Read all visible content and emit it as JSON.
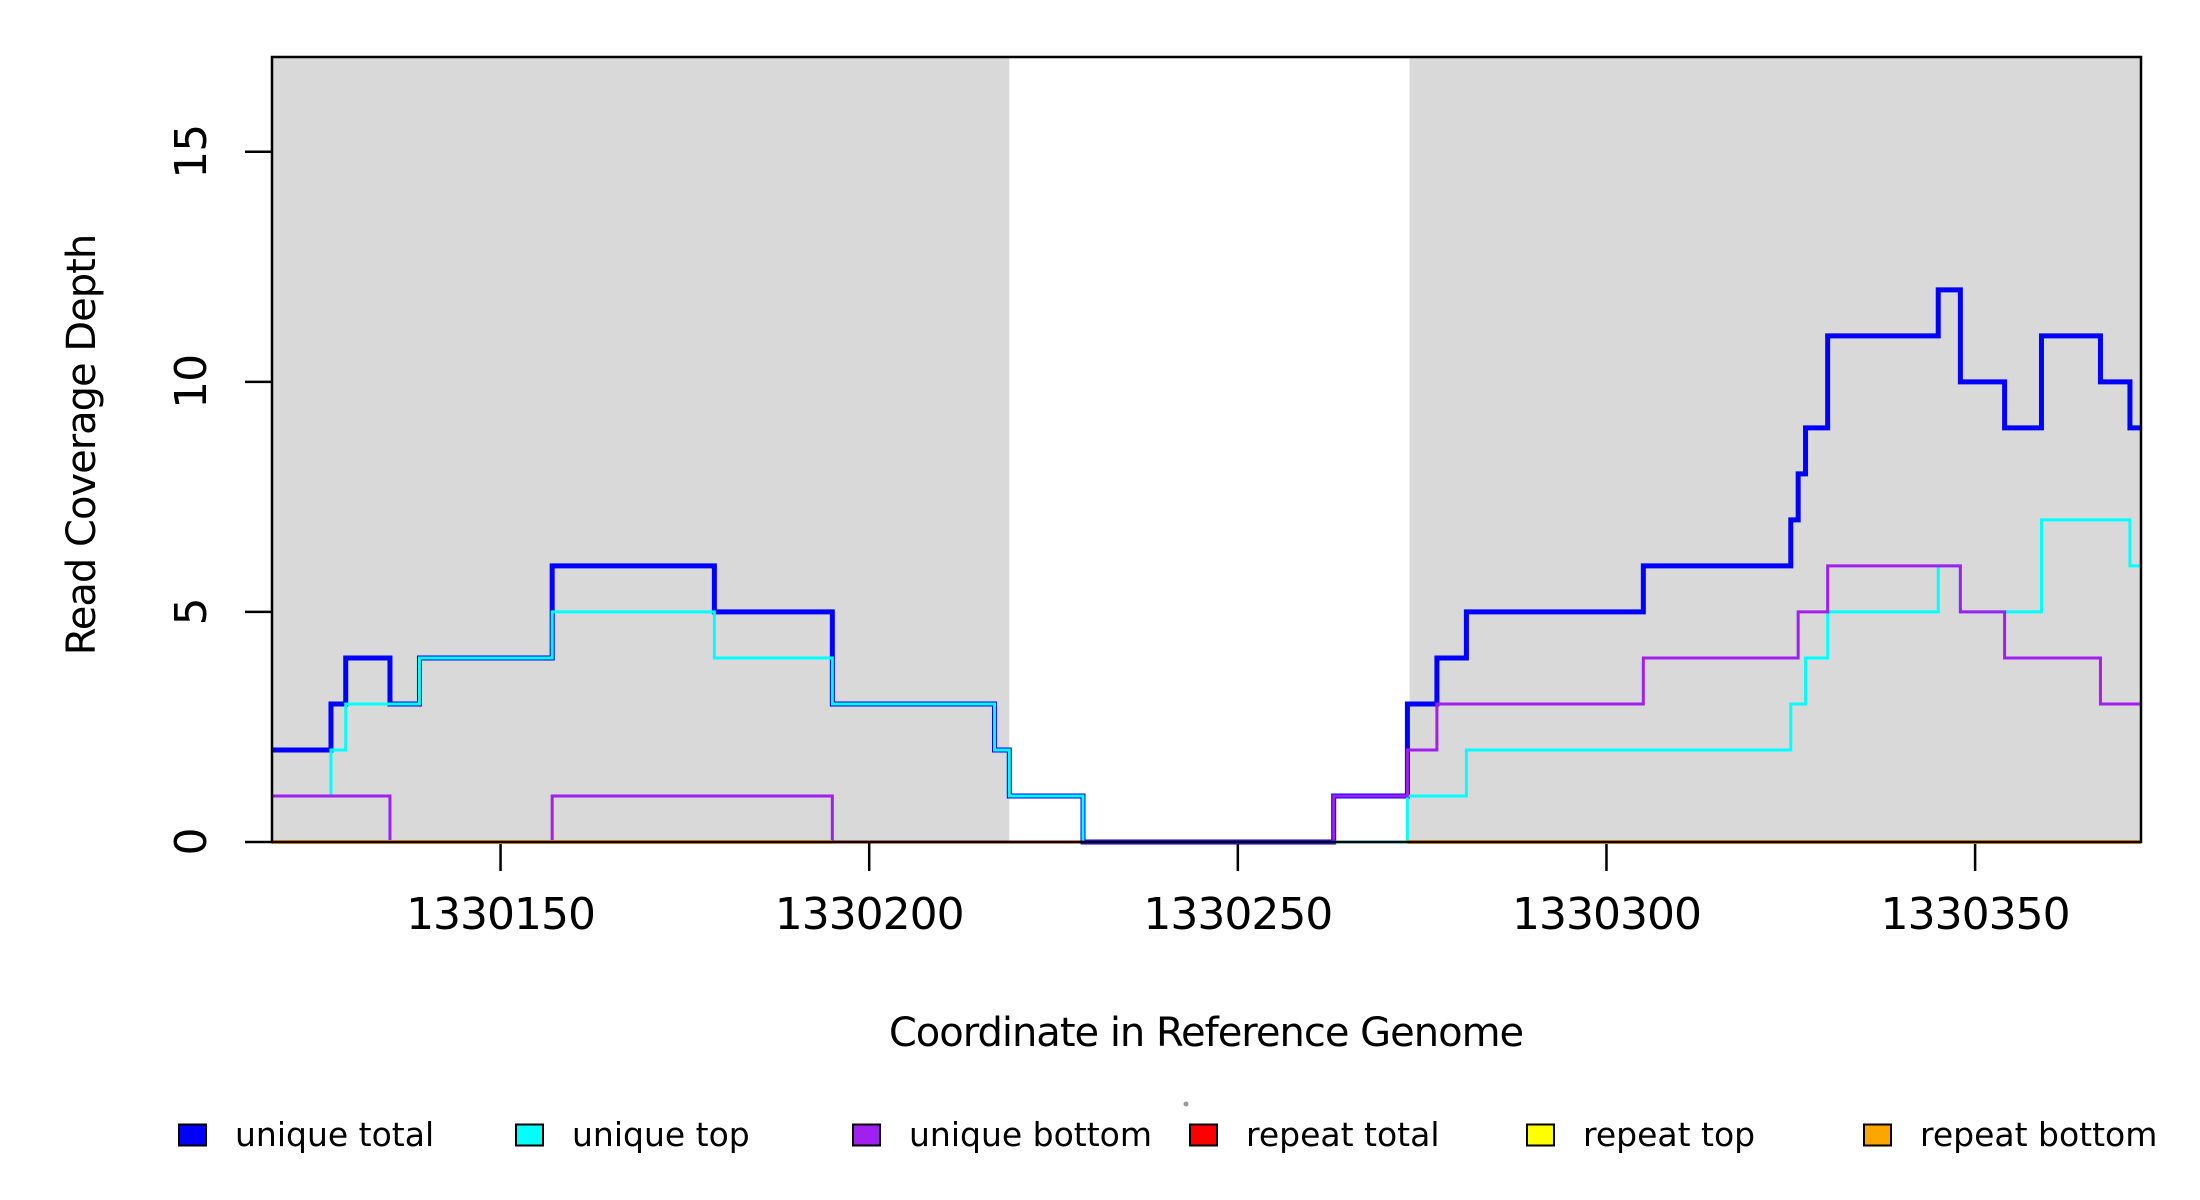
{
  "chart_data": {
    "type": "line",
    "subtype": "step",
    "title": "",
    "xlabel": "Coordinate in Reference Genome",
    "ylabel": "Read Coverage Depth",
    "xlim": [
      1330119,
      1330372.5
    ],
    "ylim": [
      0,
      17.06
    ],
    "x_ticks": [
      1330150,
      1330200,
      1330250,
      1330300,
      1330350
    ],
    "y_ticks": [
      0,
      5,
      10,
      15
    ],
    "grid": false,
    "legend_position": "bottom",
    "colors": {
      "shaded_region": "#d9d9d9",
      "axis": "#000000"
    },
    "shaded_regions": [
      {
        "name": "left-aligned-block",
        "x0": 1330119,
        "x1": 1330219,
        "color": "#d9d9d9"
      },
      {
        "name": "right-aligned-block",
        "x0": 1330273.3,
        "x1": 1330372.5,
        "color": "#d9d9d9"
      }
    ],
    "series": [
      {
        "name": "unique total",
        "color": "#0000ff",
        "line_width": 5,
        "segments": [
          {
            "steps": [
              [
                1330119,
                2
              ],
              [
                1330127,
                3
              ],
              [
                1330129,
                4
              ],
              [
                1330135,
                3
              ],
              [
                1330139,
                4
              ],
              [
                1330157,
                6
              ],
              [
                1330179,
                5
              ],
              [
                1330195,
                3
              ],
              [
                1330217,
                2
              ],
              [
                1330219,
                1
              ],
              [
                1330229,
                0
              ],
              [
                1330263,
                1
              ],
              [
                1330273,
                3
              ],
              [
                1330277,
                4
              ],
              [
                1330281,
                5
              ],
              [
                1330305,
                6
              ],
              [
                1330325,
                7
              ],
              [
                1330326,
                8
              ],
              [
                1330327,
                9
              ],
              [
                1330330,
                11
              ],
              [
                1330345,
                12
              ],
              [
                1330348,
                10
              ],
              [
                1330354,
                9
              ],
              [
                1330359,
                11
              ],
              [
                1330367,
                10
              ],
              [
                1330371,
                9
              ]
            ],
            "end": 1330372.5
          }
        ]
      },
      {
        "name": "unique top",
        "color": "#00ffff",
        "line_width": 3,
        "segments": [
          {
            "steps": [
              [
                1330119,
                1
              ],
              [
                1330127,
                2
              ],
              [
                1330129,
                3
              ],
              [
                1330139,
                4
              ],
              [
                1330157,
                5
              ],
              [
                1330179,
                4
              ],
              [
                1330195,
                3
              ],
              [
                1330217,
                2
              ],
              [
                1330219,
                1
              ],
              [
                1330229,
                0
              ],
              [
                1330273,
                1
              ],
              [
                1330281,
                2
              ],
              [
                1330325,
                3
              ],
              [
                1330327,
                4
              ],
              [
                1330330,
                5
              ],
              [
                1330345,
                6
              ],
              [
                1330348,
                5
              ],
              [
                1330359,
                7
              ],
              [
                1330371,
                6
              ]
            ],
            "end": 1330372.5
          }
        ]
      },
      {
        "name": "unique bottom",
        "color": "#a020f0",
        "line_width": 3,
        "segments": [
          {
            "steps": [
              [
                1330119,
                1
              ],
              [
                1330135,
                0
              ],
              [
                1330157,
                1
              ],
              [
                1330195,
                0
              ],
              [
                1330263,
                1
              ],
              [
                1330273,
                2
              ],
              [
                1330277,
                3
              ],
              [
                1330305,
                4
              ],
              [
                1330326,
                5
              ],
              [
                1330330,
                6
              ],
              [
                1330348,
                5
              ],
              [
                1330354,
                4
              ],
              [
                1330367,
                3
              ]
            ],
            "end": 1330372.5
          }
        ]
      },
      {
        "name": "repeat total",
        "color": "#ff0000",
        "line_width": 3,
        "segments": [
          {
            "steps": [
              [
                1330119,
                0
              ]
            ],
            "end": 1330229
          },
          {
            "steps": [
              [
                1330273,
                0
              ]
            ],
            "end": 1330372.5
          }
        ]
      },
      {
        "name": "repeat top",
        "color": "#ffff00",
        "line_width": 3,
        "segments": [
          {
            "steps": [
              [
                1330119,
                0
              ]
            ],
            "end": 1330195
          },
          {
            "steps": [
              [
                1330273,
                0
              ]
            ],
            "end": 1330372.5
          }
        ]
      },
      {
        "name": "repeat bottom",
        "color": "#ffa500",
        "line_width": 4,
        "segments": [
          {
            "steps": [
              [
                1330119,
                0
              ]
            ],
            "end": 1330195
          },
          {
            "steps": [
              [
                1330273,
                0
              ]
            ],
            "end": 1330372.5
          }
        ]
      }
    ],
    "legend": {
      "entries": [
        {
          "label": "unique total",
          "color": "#0000ff"
        },
        {
          "label": "unique top",
          "color": "#00ffff"
        },
        {
          "label": "unique bottom",
          "color": "#a020f0"
        },
        {
          "label": "repeat total",
          "color": "#ff0000"
        },
        {
          "label": "repeat top",
          "color": "#ffff00"
        },
        {
          "label": "repeat bottom",
          "color": "#ffa500"
        }
      ]
    }
  }
}
